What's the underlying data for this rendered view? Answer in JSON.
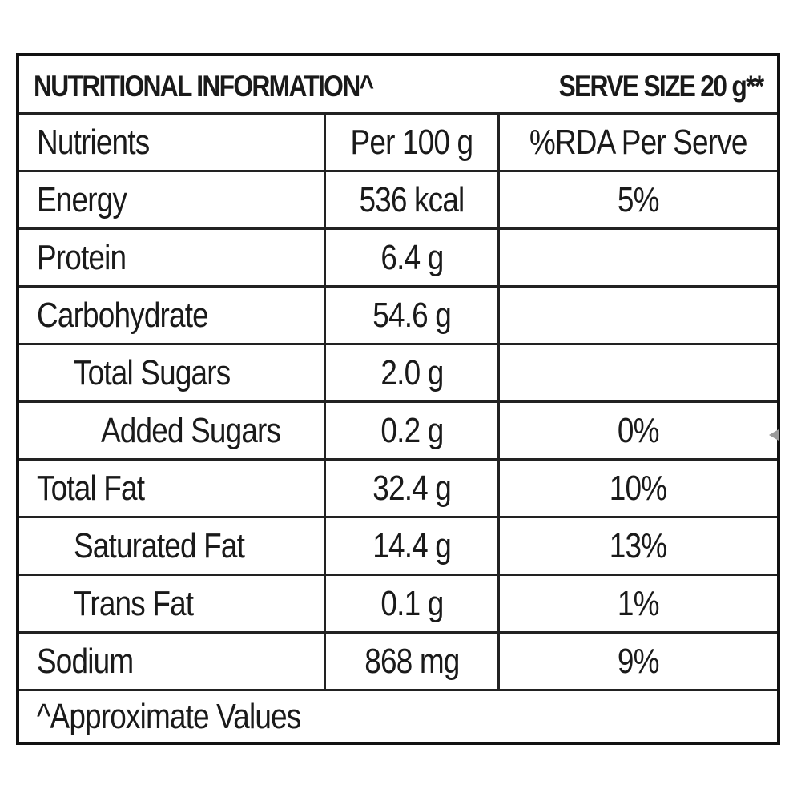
{
  "header": {
    "title": "NUTRITIONAL INFORMATION^",
    "serve_size": "SERVE SIZE 20 g**"
  },
  "columns": [
    "Nutrients",
    "Per 100 g",
    "%RDA Per Serve"
  ],
  "rows": [
    {
      "nutrient": "Energy",
      "per100": "536 kcal",
      "rda": "5%"
    },
    {
      "nutrient": "Protein",
      "per100": "6.4 g",
      "rda": ""
    },
    {
      "nutrient": "Carbohydrate",
      "per100": "54.6 g",
      "rda": ""
    },
    {
      "nutrient": "Total Sugars",
      "per100": "2.0 g",
      "rda": ""
    },
    {
      "nutrient": "Added Sugars",
      "per100": "0.2 g",
      "rda": "0%"
    },
    {
      "nutrient": "Total Fat",
      "per100": "32.4 g",
      "rda": "10%"
    },
    {
      "nutrient": "Saturated Fat",
      "per100": "14.4 g",
      "rda": "13%"
    },
    {
      "nutrient": "Trans Fat",
      "per100": "0.1 g",
      "rda": "1%"
    },
    {
      "nutrient": "Sodium",
      "per100": "868 mg",
      "rda": "9%"
    }
  ],
  "footer": {
    "note": "^Approximate Values"
  }
}
